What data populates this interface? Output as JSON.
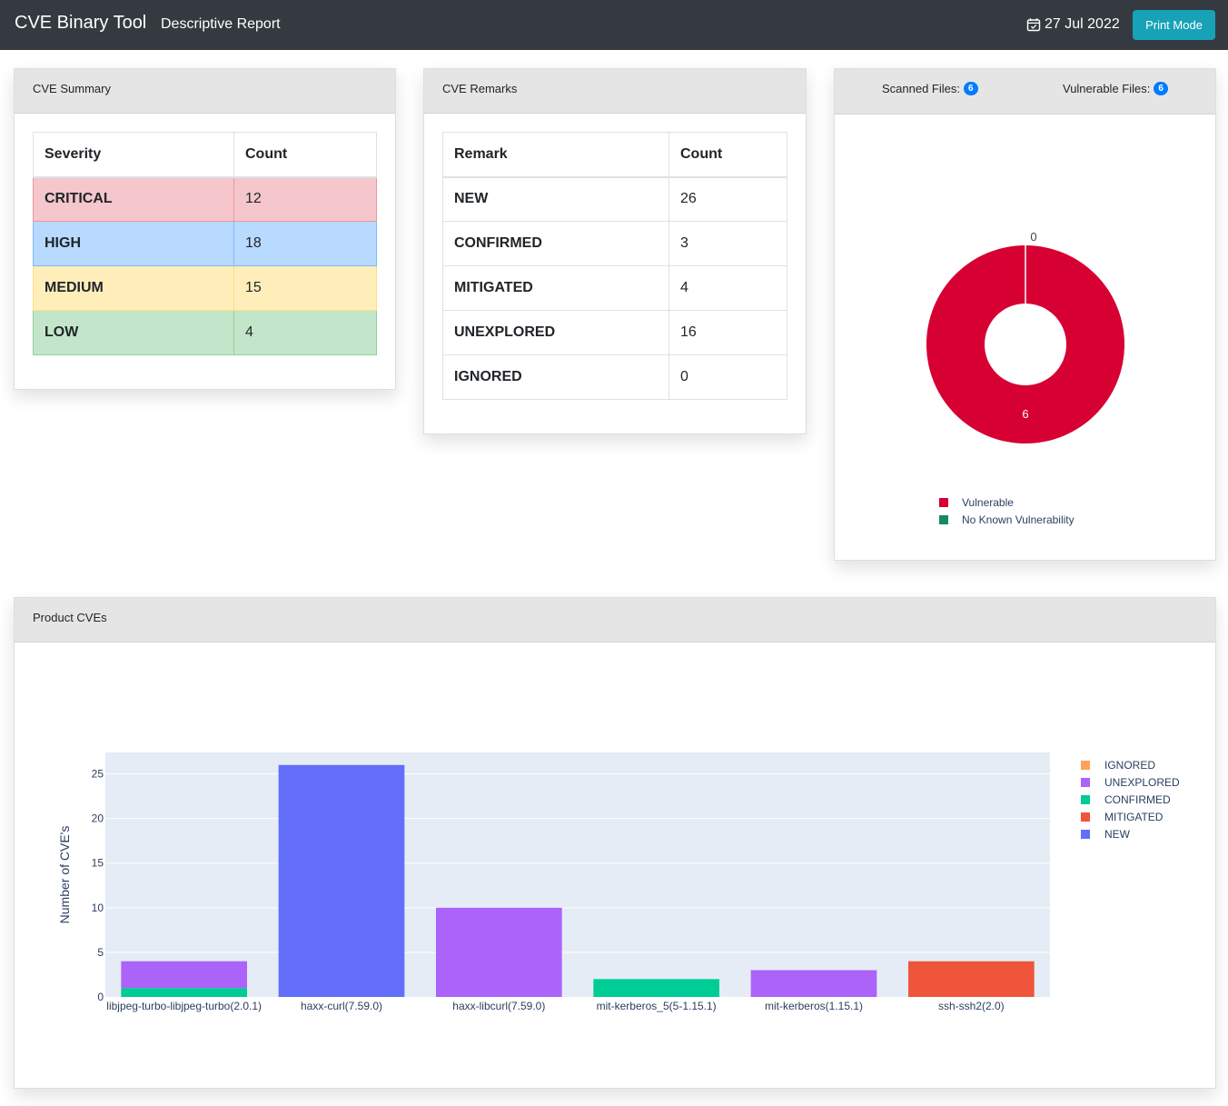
{
  "navbar": {
    "title": "CVE Binary Tool",
    "subtitle": "Descriptive Report",
    "date": "27 Jul 2022",
    "print_button": "Print Mode"
  },
  "cve_summary": {
    "title": "CVE Summary",
    "columns": [
      "Severity",
      "Count"
    ],
    "rows": [
      {
        "severity": "CRITICAL",
        "count": "12"
      },
      {
        "severity": "HIGH",
        "count": "18"
      },
      {
        "severity": "MEDIUM",
        "count": "15"
      },
      {
        "severity": "LOW",
        "count": "4"
      }
    ]
  },
  "cve_remarks": {
    "title": "CVE Remarks",
    "columns": [
      "Remark",
      "Count"
    ],
    "rows": [
      {
        "remark": "NEW",
        "count": "26"
      },
      {
        "remark": "CONFIRMED",
        "count": "3"
      },
      {
        "remark": "MITIGATED",
        "count": "4"
      },
      {
        "remark": "UNEXPLORED",
        "count": "16"
      },
      {
        "remark": "IGNORED",
        "count": "0"
      }
    ]
  },
  "files": {
    "scanned_label": "Scanned Files:",
    "scanned_count": "6",
    "vulnerable_label": "Vulnerable Files:",
    "vulnerable_count": "6"
  },
  "product_cves": {
    "title": "Product CVEs"
  },
  "chart_data": [
    {
      "type": "pie",
      "hole": true,
      "labels": [
        "Vulnerable",
        "No Known Vulnerability"
      ],
      "values": [
        6,
        0
      ],
      "colors": [
        "#d60032",
        "#168b5e"
      ],
      "legend": "bottom"
    },
    {
      "type": "bar",
      "stacked": true,
      "categories": [
        "libjpeg-turbo-libjpeg-turbo(2.0.1)",
        "haxx-curl(7.59.0)",
        "haxx-libcurl(7.59.0)",
        "mit-kerberos_5(5-1.15.1)",
        "mit-kerberos(1.15.1)",
        "ssh-ssh2(2.0)"
      ],
      "series": [
        {
          "name": "NEW",
          "color": "#636efa",
          "values": [
            0,
            26,
            0,
            0,
            0,
            0
          ]
        },
        {
          "name": "MITIGATED",
          "color": "#ef553b",
          "values": [
            0,
            0,
            0,
            0,
            0,
            4
          ]
        },
        {
          "name": "CONFIRMED",
          "color": "#00cc96",
          "values": [
            1,
            0,
            0,
            2,
            0,
            0
          ]
        },
        {
          "name": "UNEXPLORED",
          "color": "#ab63fa",
          "values": [
            3,
            0,
            10,
            0,
            3,
            0
          ]
        },
        {
          "name": "IGNORED",
          "color": "#ffa15a",
          "values": [
            0,
            0,
            0,
            0,
            0,
            0
          ]
        }
      ],
      "legend_order": [
        "IGNORED",
        "UNEXPLORED",
        "CONFIRMED",
        "MITIGATED",
        "NEW"
      ],
      "ylabel": "Number of CVE's",
      "ylim": [
        0,
        27.4
      ],
      "yticks": [
        0,
        5,
        10,
        15,
        20,
        25
      ],
      "grid": true,
      "legend": "right"
    }
  ]
}
